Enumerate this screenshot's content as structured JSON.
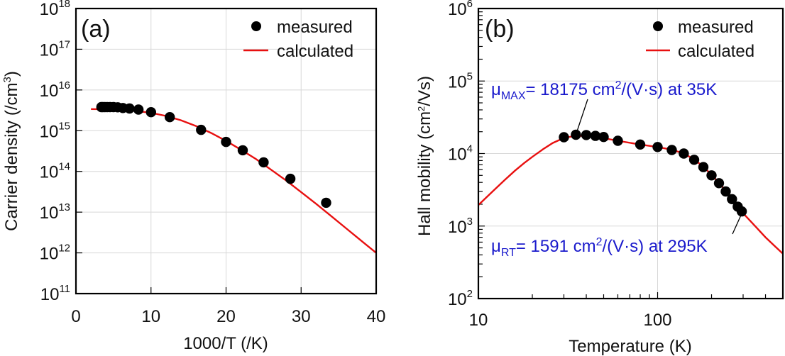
{
  "chart_data": [
    {
      "id": "a",
      "type": "scatter",
      "panel_label": "(a)",
      "title": "",
      "xlabel": "1000/T (/K)",
      "ylabel": "Carrier density (/cm³)",
      "ylabel_parts": {
        "base": "Carrier density (/cm",
        "sup": "3",
        "tail": ")"
      },
      "xscale": "linear",
      "yscale": "log",
      "xlim": [
        0,
        40
      ],
      "ylim": [
        100000000000.0,
        1e+18
      ],
      "xticks": [
        0,
        10,
        20,
        30,
        40
      ],
      "xtick_labels": [
        "0",
        "10",
        "20",
        "30",
        "40"
      ],
      "yticks_exp": [
        11,
        12,
        13,
        14,
        15,
        16,
        17,
        18
      ],
      "ytick_base": "10",
      "grid": true,
      "legend": {
        "placement": "top-right",
        "entries": [
          {
            "label": "measured",
            "kind": "marker"
          },
          {
            "label": "calculated",
            "kind": "line"
          }
        ]
      },
      "series": [
        {
          "name": "measured",
          "kind": "marker",
          "color": "#000000",
          "x": [
            3.39,
            3.57,
            3.85,
            4.17,
            4.55,
            5.0,
            5.56,
            6.25,
            7.14,
            8.33,
            10.0,
            12.5,
            16.67,
            20.0,
            22.22,
            25.0,
            28.57,
            33.33
          ],
          "y": [
            3800000000000000.0,
            3800000000000000.0,
            3800000000000000.0,
            3800000000000000.0,
            3800000000000000.0,
            3800000000000000.0,
            3750000000000000.0,
            3600000000000000.0,
            3500000000000000.0,
            3300000000000000.0,
            2850000000000000.0,
            2150000000000000.0,
            1050000000000000.0,
            530000000000000.0,
            330000000000000.0,
            167000000000000.0,
            66000000000000.0,
            17000000000000.0
          ]
        },
        {
          "name": "calculated",
          "kind": "line",
          "color": "#e81010",
          "x": [
            2.0,
            4.0,
            6.0,
            8.0,
            10.0,
            12.0,
            14.0,
            16.0,
            18.0,
            20.0,
            22.0,
            24.0,
            26.0,
            28.0,
            30.0,
            32.0,
            34.0,
            36.0,
            38.0,
            40.0
          ],
          "y": [
            3400000000000000.0,
            3350000000000000.0,
            3250000000000000.0,
            3050000000000000.0,
            2750000000000000.0,
            2300000000000000.0,
            1800000000000000.0,
            1300000000000000.0,
            880000000000000.0,
            560000000000000.0,
            340000000000000.0,
            200000000000000.0,
            110000000000000.0,
            60000000000000.0,
            31000000000000.0,
            16000000000000.0,
            8000000000000.0,
            4000000000000.0,
            2000000000000.0,
            1000000000000.0
          ]
        }
      ]
    },
    {
      "id": "b",
      "type": "scatter",
      "panel_label": "(b)",
      "title": "",
      "xlabel": "Temperature (K)",
      "ylabel": "Hall mobility (cm²/Vs)",
      "ylabel_parts": {
        "base": "Hall mobility (cm",
        "sup": "2",
        "tail": "/Vs)"
      },
      "xscale": "log",
      "yscale": "log",
      "xlim": [
        10,
        500
      ],
      "ylim": [
        100,
        1000000
      ],
      "xticks_major": [
        10,
        100
      ],
      "xtick_labels": [
        "10",
        "100"
      ],
      "xticks_minor": [
        20,
        30,
        40,
        50,
        60,
        70,
        80,
        90,
        200,
        300,
        400
      ],
      "yticks_exp": [
        2,
        3,
        4,
        5,
        6
      ],
      "ytick_base": "10",
      "grid": true,
      "legend": {
        "placement": "top-right",
        "entries": [
          {
            "label": "measured",
            "kind": "marker"
          },
          {
            "label": "calculated",
            "kind": "line"
          }
        ]
      },
      "annotations": [
        {
          "symbol": "μ",
          "subscript": "MAX",
          "text": "= 18175 cm",
          "sup": "2",
          "tail": "/(V·s) at 35K",
          "color": "#1a1acc",
          "points_to": {
            "x": 35,
            "y": 18175
          }
        },
        {
          "symbol": "μ",
          "subscript": "RT",
          "text": "= 1591 cm",
          "sup": "2",
          "tail": "/(V·s) at 295K",
          "color": "#1a1acc",
          "points_to": {
            "x": 295,
            "y": 1591
          }
        }
      ],
      "series": [
        {
          "name": "measured",
          "kind": "marker",
          "color": "#000000",
          "x": [
            30,
            35,
            40,
            45,
            50,
            60,
            80,
            100,
            120,
            140,
            160,
            180,
            200,
            220,
            240,
            260,
            280,
            295
          ],
          "y": [
            16800,
            18175,
            18000,
            17500,
            16900,
            15000,
            13300,
            12300,
            11200,
            10000,
            8200,
            6500,
            5000,
            3900,
            3000,
            2350,
            1850,
            1591
          ]
        },
        {
          "name": "calculated",
          "kind": "line",
          "color": "#e81010",
          "x": [
            10,
            12,
            14,
            16,
            18,
            20,
            23,
            26,
            30,
            35,
            40,
            50,
            60,
            80,
            100,
            120,
            140,
            160,
            180,
            200,
            220,
            240,
            260,
            280,
            300,
            350,
            400,
            450,
            500
          ],
          "y": [
            1950,
            3000,
            4300,
            5800,
            7400,
            9000,
            11500,
            14000,
            16400,
            17600,
            17500,
            16300,
            15000,
            13300,
            12300,
            11300,
            10000,
            8300,
            6600,
            5100,
            3950,
            3050,
            2400,
            1900,
            1500,
            1000,
            700,
            530,
            415
          ]
        }
      ]
    }
  ]
}
